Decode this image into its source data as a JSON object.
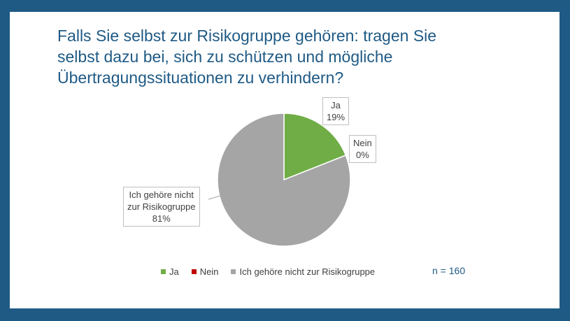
{
  "title_lines": [
    "Falls Sie selbst zur Risikogruppe gehören: tragen Sie",
    "selbst dazu bei, sich zu schützen und mögliche",
    "Übertragungssituationen zu verhindern?"
  ],
  "chart_data": {
    "type": "pie",
    "title": "Falls Sie selbst zur Risikogruppe gehören: tragen Sie selbst dazu bei, sich zu schützen und mögliche Übertragungssituationen zu verhindern?",
    "categories": [
      "Ja",
      "Nein",
      "Ich gehöre nicht zur Risikogruppe"
    ],
    "values": [
      19,
      0,
      81
    ],
    "data_labels": [
      {
        "lines": [
          "Ja",
          "19%"
        ]
      },
      {
        "lines": [
          "Nein",
          "0%"
        ]
      },
      {
        "lines": [
          "Ich gehöre nicht",
          "zur Risikogruppe",
          "81%"
        ]
      }
    ],
    "colors": [
      "#70ad47",
      "#c00000",
      "#a5a5a5"
    ],
    "legend_position": "bottom"
  },
  "sample_size": "n = 160"
}
